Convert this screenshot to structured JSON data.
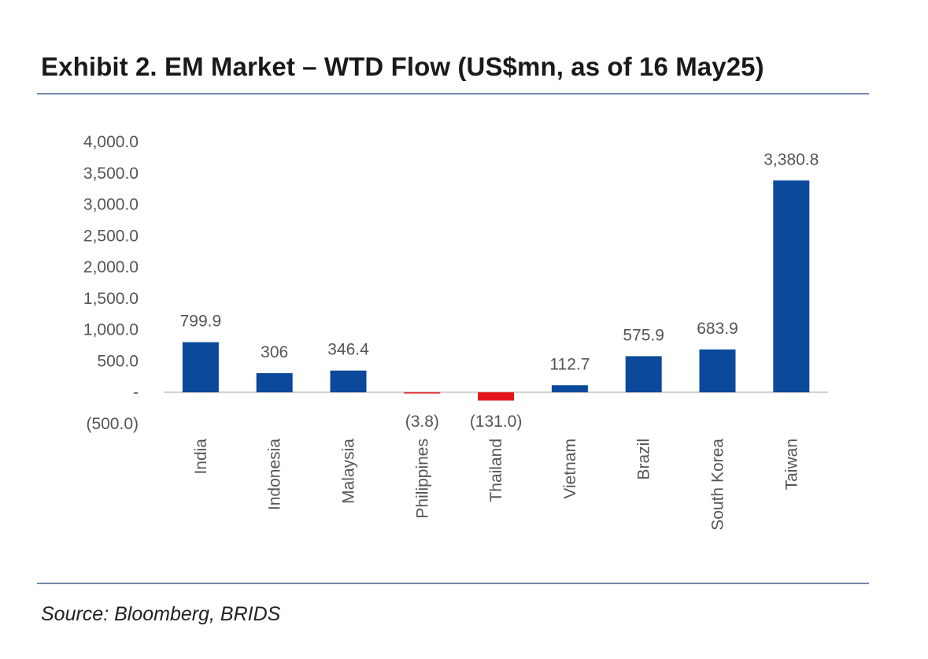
{
  "header": {
    "title": "Exhibit 2. EM Market – WTD Flow (US$mn, as of 16 May25)"
  },
  "footer": {
    "source": "Source: Bloomberg, BRIDS"
  },
  "colors": {
    "positive_bar": "#0b4a9b",
    "negative_bar": "#e3141b",
    "axis_line": "#d0d0d0",
    "label_text": "#555555",
    "rule": "#6f88ad"
  },
  "chart_data": {
    "type": "bar",
    "title": "Exhibit 2. EM Market – WTD Flow (US$mn, as of 16 May25)",
    "xlabel": "",
    "ylabel": "",
    "categories": [
      "India",
      "Indonesia",
      "Malaysia",
      "Philippines",
      "Thailand",
      "Vietnam",
      "Brazil",
      "South Korea",
      "Taiwan"
    ],
    "values": [
      799.9,
      306,
      346.4,
      -3.8,
      -131.0,
      112.7,
      575.9,
      683.9,
      3380.8
    ],
    "data_labels": [
      "799.9",
      "306",
      "346.4",
      "(3.8)",
      "(131.0)",
      "112.7",
      "575.9",
      "683.9",
      "3,380.8"
    ],
    "ylim": [
      -500,
      4000
    ],
    "yticks": [
      -500,
      0,
      500,
      1000,
      1500,
      2000,
      2500,
      3000,
      3500,
      4000
    ],
    "ytick_labels": [
      "(500.0)",
      "-",
      "500.0",
      "1,000.0",
      "1,500.0",
      "2,000.0",
      "2,500.0",
      "3,000.0",
      "3,500.0",
      "4,000.0"
    ],
    "grid": false,
    "legend": "none"
  }
}
